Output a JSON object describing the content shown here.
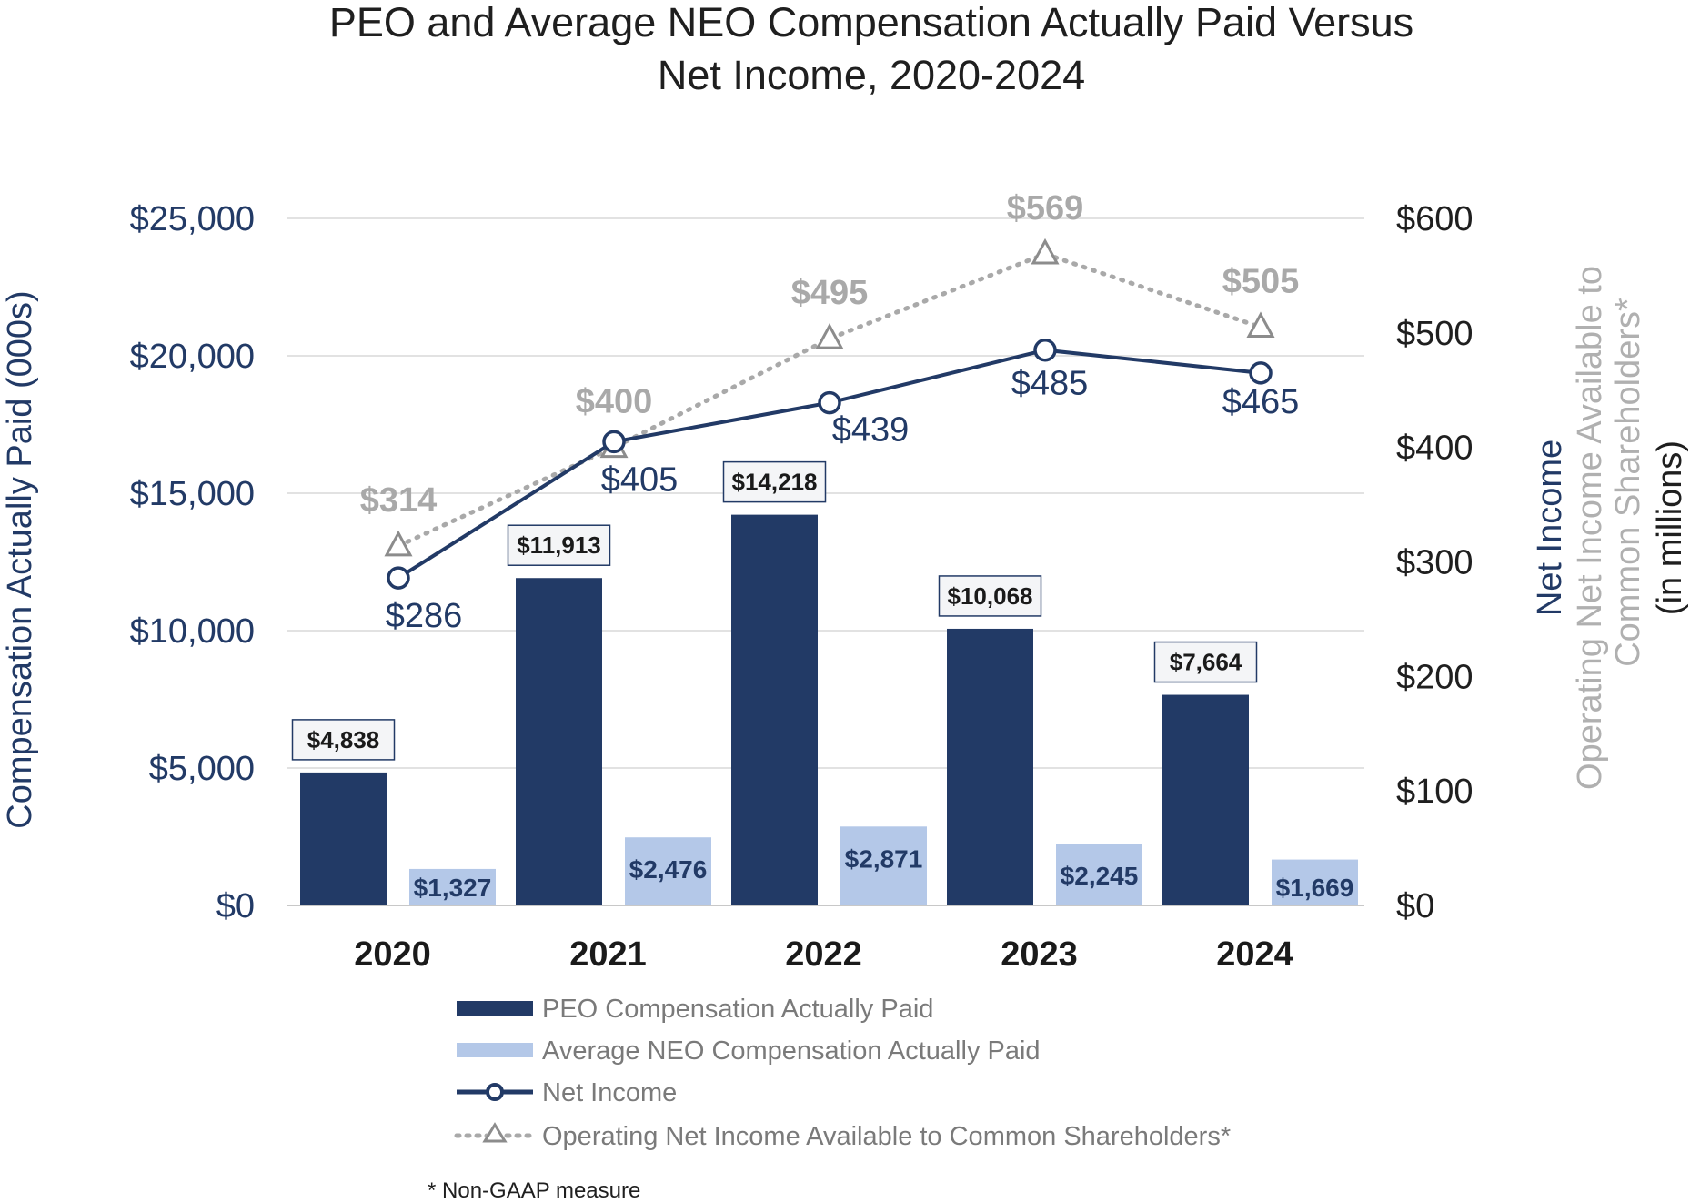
{
  "colors": {
    "peo": "#223a66",
    "neo": "#b4c8e8",
    "net_income": "#223a66",
    "operating": "#a9a9a9",
    "grid": "#d9d9d9"
  },
  "chart_data": {
    "type": "bar",
    "title_lines": [
      "PEO and Average NEO Compensation Actually Paid Versus",
      "Net Income, 2020-2024"
    ],
    "categories": [
      "2020",
      "2021",
      "2022",
      "2023",
      "2024"
    ],
    "left_axis": {
      "title": "Compensation Actually Paid (000s)",
      "range": [
        0,
        25000
      ],
      "ticks": [
        0,
        5000,
        10000,
        15000,
        20000,
        25000
      ],
      "tick_labels": [
        "$0",
        "$5,000",
        "$10,000",
        "$15,000",
        "$20,000",
        "$25,000"
      ]
    },
    "right_axis": {
      "title_lines": [
        "Net Income",
        "Operating Net Income Available to",
        "Common Shareholders*",
        "(in millions)"
      ],
      "range": [
        0,
        600
      ],
      "ticks": [
        0,
        100,
        200,
        300,
        400,
        500,
        600
      ],
      "tick_labels": [
        "$0",
        "$100",
        "$200",
        "$300",
        "$400",
        "$500",
        "$600"
      ]
    },
    "series": [
      {
        "name": "PEO Compensation Actually Paid",
        "type": "bar",
        "axis": "left",
        "values": [
          4838,
          11913,
          14218,
          10068,
          7664
        ],
        "labels": [
          "$4,838",
          "$11,913",
          "$14,218",
          "$10,068",
          "$7,664"
        ]
      },
      {
        "name": "Average NEO Compensation Actually Paid",
        "type": "bar",
        "axis": "left",
        "values": [
          1327,
          2476,
          2871,
          2245,
          1669
        ],
        "labels": [
          "$1,327",
          "$2,476",
          "$2,871",
          "$2,245",
          "$1,669"
        ]
      },
      {
        "name": "Net Income",
        "type": "line",
        "axis": "right",
        "marker": "circle",
        "values": [
          286,
          405,
          439,
          485,
          465
        ],
        "labels": [
          "$286",
          "$405",
          "$439",
          "$485",
          "$465"
        ]
      },
      {
        "name": "Operating Net Income Available to Common Shareholders*",
        "type": "line",
        "axis": "right",
        "marker": "triangle",
        "style": "dotted",
        "values": [
          314,
          400,
          495,
          569,
          505
        ],
        "labels": [
          "$314",
          "$400",
          "$495",
          "$569",
          "$505"
        ]
      }
    ],
    "legend_position": "bottom",
    "footnote": "* Non-GAAP measure"
  }
}
